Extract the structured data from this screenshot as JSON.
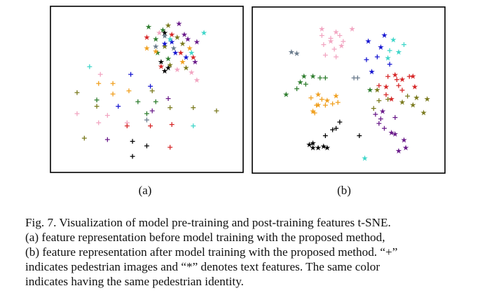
{
  "colors": {
    "red": "#d62728",
    "blue": "#1515d0",
    "pink": "#f2a6c2",
    "cyan": "#3fd6c9",
    "orange": "#f0a020",
    "green": "#2e7d2e",
    "olive": "#7a7a1e",
    "purple": "#6a1b8a",
    "black": "#000000",
    "gray": "#6a7b8c"
  },
  "marker_legend": {
    "plus": "pedestrian images",
    "star": "text features"
  },
  "subfigure_labels": [
    "(a)",
    "(b)"
  ],
  "caption": {
    "lines": [
      "Fig. 7.  Visualization of model pre-training and post-training features t-SNE.",
      "(a) feature representation before model training with the proposed method,",
      "(b) feature representation after model training with the proposed method. “+”",
      "indicates pedestrian images and “*” denotes text features. The same color",
      "indicates having the same pedestrian identity."
    ]
  },
  "chart_data": [
    {
      "type": "scatter",
      "subplot": "(a)",
      "axes": "off",
      "xlim": [
        0,
        100
      ],
      "ylim": [
        0,
        100
      ],
      "series": [
        {
          "marker": "star",
          "color": "green",
          "points": [
            [
              51,
              91
            ],
            [
              59,
              89
            ],
            [
              55,
              83
            ],
            [
              62,
              70
            ],
            [
              56,
              74
            ]
          ]
        },
        {
          "marker": "star",
          "color": "olive",
          "points": [
            [
              62,
              92
            ],
            [
              67,
              84
            ],
            [
              70,
              80
            ],
            [
              63,
              66
            ],
            [
              72,
              64
            ],
            [
              60,
              78
            ]
          ]
        },
        {
          "marker": "star",
          "color": "purple",
          "points": [
            [
              68,
              93
            ],
            [
              71,
              86
            ],
            [
              73,
              83
            ],
            [
              78,
              81
            ],
            [
              77,
              68
            ]
          ]
        },
        {
          "marker": "star",
          "color": "red",
          "points": [
            [
              50,
              84
            ],
            [
              64,
              86
            ],
            [
              69,
              74
            ],
            [
              58,
              65
            ],
            [
              76,
              71
            ]
          ]
        },
        {
          "marker": "star",
          "color": "blue",
          "points": [
            [
              60,
              80
            ],
            [
              66,
              74
            ],
            [
              72,
              71
            ],
            [
              64,
              81
            ]
          ]
        },
        {
          "marker": "star",
          "color": "pink",
          "points": [
            [
              57,
              87
            ],
            [
              67,
              63
            ],
            [
              75,
              61
            ],
            [
              78,
              56
            ]
          ]
        },
        {
          "marker": "star",
          "color": "orange",
          "points": [
            [
              50,
              77
            ],
            [
              55,
              75
            ],
            [
              70,
              68
            ],
            [
              74,
              77
            ]
          ]
        },
        {
          "marker": "star",
          "color": "black",
          "points": [
            [
              60,
              87
            ],
            [
              58,
              68
            ],
            [
              60,
              62
            ],
            [
              62,
              64
            ]
          ]
        },
        {
          "marker": "star",
          "color": "gray",
          "points": [
            [
              55,
              78
            ],
            [
              65,
              77
            ],
            [
              60,
              85
            ]
          ]
        },
        {
          "marker": "star",
          "color": "cyan",
          "points": [
            [
              63,
              83
            ],
            [
              82,
              87
            ],
            [
              75,
              74
            ]
          ]
        },
        {
          "marker": "plus",
          "color": "olive",
          "points": [
            [
              11,
              48
            ],
            [
              22,
              39
            ],
            [
              15,
              18
            ],
            [
              63,
              38
            ],
            [
              89,
              36
            ],
            [
              53,
              49
            ],
            [
              76,
              38
            ]
          ]
        },
        {
          "marker": "plus",
          "color": "orange",
          "points": [
            [
              23,
              54
            ],
            [
              31,
              54
            ],
            [
              31,
              47
            ],
            [
              40,
              49
            ]
          ]
        },
        {
          "marker": "plus",
          "color": "green",
          "points": [
            [
              22,
              43
            ],
            [
              45,
              42
            ],
            [
              50,
              34
            ],
            [
              55,
              42
            ]
          ]
        },
        {
          "marker": "plus",
          "color": "pink",
          "points": [
            [
              11,
              34
            ],
            [
              23,
              28
            ],
            [
              28,
              33
            ],
            [
              39,
              28
            ],
            [
              24,
              60
            ]
          ]
        },
        {
          "marker": "plus",
          "color": "blue",
          "points": [
            [
              41,
              60
            ],
            [
              34,
              39
            ],
            [
              52,
              52
            ]
          ]
        },
        {
          "marker": "plus",
          "color": "purple",
          "points": [
            [
              28,
              17
            ],
            [
              62,
              44
            ],
            [
              53,
              36
            ]
          ]
        },
        {
          "marker": "plus",
          "color": "red",
          "points": [
            [
              39,
              26
            ],
            [
              52,
              26
            ],
            [
              64,
              27
            ],
            [
              63,
              12
            ]
          ]
        },
        {
          "marker": "plus",
          "color": "black",
          "points": [
            [
              42,
              16
            ],
            [
              50,
              13
            ],
            [
              42,
              6
            ]
          ]
        },
        {
          "marker": "plus",
          "color": "cyan",
          "points": [
            [
              18,
              65
            ],
            [
              76,
              26
            ]
          ]
        },
        {
          "marker": "plus",
          "color": "gray",
          "points": [
            [
              50,
              30
            ]
          ]
        }
      ]
    },
    {
      "type": "scatter",
      "subplot": "(b)",
      "axes": "off",
      "xlim": [
        0,
        100
      ],
      "ylim": [
        0,
        100
      ],
      "series": [
        {
          "marker": "plus",
          "color": "pink",
          "points": [
            [
              35,
              86
            ],
            [
              40,
              84
            ],
            [
              36,
              80
            ],
            [
              42,
              77
            ],
            [
              45,
              86
            ],
            [
              37,
              73
            ],
            [
              43,
              72
            ],
            [
              47,
              82
            ]
          ]
        },
        {
          "marker": "star",
          "color": "pink",
          "points": [
            [
              35,
              90
            ],
            [
              43,
              88
            ],
            [
              40,
              82
            ],
            [
              46,
              79
            ],
            [
              52,
              90
            ]
          ]
        },
        {
          "marker": "plus",
          "color": "cyan",
          "points": [
            [
              73,
              76
            ],
            [
              81,
              80
            ]
          ]
        },
        {
          "marker": "star",
          "color": "cyan",
          "points": [
            [
              75,
              83
            ],
            [
              72,
              71
            ],
            [
              78,
              75
            ],
            [
              59,
              5
            ]
          ]
        },
        {
          "marker": "plus",
          "color": "blue",
          "points": [
            [
              60,
              70
            ],
            [
              73,
              67
            ],
            [
              66,
              72
            ]
          ]
        },
        {
          "marker": "star",
          "color": "blue",
          "points": [
            [
              68,
              78
            ],
            [
              61,
              82
            ],
            [
              70,
              86
            ],
            [
              63,
              62
            ]
          ]
        },
        {
          "marker": "plus",
          "color": "gray",
          "points": [
            [
              53,
              58
            ],
            [
              55,
              58
            ]
          ]
        },
        {
          "marker": "star",
          "color": "gray",
          "points": [
            [
              18,
              75
            ],
            [
              21,
              74
            ]
          ]
        },
        {
          "marker": "plus",
          "color": "green",
          "points": [
            [
              34,
              58
            ],
            [
              37,
              58
            ],
            [
              26,
              54
            ],
            [
              21,
              51
            ]
          ]
        },
        {
          "marker": "star",
          "color": "green",
          "points": [
            [
              25,
              59
            ],
            [
              30,
              59
            ],
            [
              23,
              55
            ],
            [
              15,
              47
            ],
            [
              62,
              50
            ]
          ]
        },
        {
          "marker": "plus",
          "color": "red",
          "points": [
            [
              67,
              53
            ],
            [
              72,
              59
            ],
            [
              78,
              53
            ],
            [
              77,
              57
            ],
            [
              80,
              50
            ],
            [
              84,
              59
            ],
            [
              71,
              47
            ]
          ]
        },
        {
          "marker": "star",
          "color": "red",
          "points": [
            [
              80,
              57
            ],
            [
              74,
              44
            ],
            [
              86,
              59
            ],
            [
              87,
              52
            ],
            [
              71,
              52
            ],
            [
              76,
              60
            ]
          ]
        },
        {
          "marker": "plus",
          "color": "olive",
          "points": [
            [
              67,
              43
            ],
            [
              72,
              44
            ],
            [
              64,
              38
            ],
            [
              83,
              46
            ]
          ]
        },
        {
          "marker": "star",
          "color": "olive",
          "points": [
            [
              66,
              50
            ],
            [
              80,
              42
            ],
            [
              88,
              45
            ],
            [
              92,
              35
            ],
            [
              86,
              40
            ],
            [
              94,
              44
            ]
          ]
        },
        {
          "marker": "plus",
          "color": "orange",
          "points": [
            [
              31,
              35
            ],
            [
              37,
              40
            ],
            [
              41,
              41
            ],
            [
              44,
              42
            ],
            [
              35,
              44
            ],
            [
              29,
              45
            ],
            [
              32,
              40
            ]
          ]
        },
        {
          "marker": "star",
          "color": "orange",
          "points": [
            [
              33,
              47
            ],
            [
              38,
              43
            ],
            [
              33,
              40
            ],
            [
              30,
              36
            ],
            [
              43,
              46
            ]
          ]
        },
        {
          "marker": "plus",
          "color": "purple",
          "points": [
            [
              67,
              28
            ],
            [
              68,
              31
            ],
            [
              76,
              32
            ],
            [
              70,
              25
            ],
            [
              65,
              34
            ]
          ]
        },
        {
          "marker": "star",
          "color": "purple",
          "points": [
            [
              76,
              21
            ],
            [
              81,
              17
            ],
            [
              78,
              10
            ],
            [
              82,
              12
            ],
            [
              74,
              22
            ],
            [
              69,
              36
            ]
          ]
        },
        {
          "marker": "plus",
          "color": "black",
          "points": [
            [
              43,
              25
            ],
            [
              37,
              20
            ],
            [
              45,
              29
            ],
            [
              41,
              24
            ]
          ]
        },
        {
          "marker": "star",
          "color": "black",
          "points": [
            [
              30,
              15
            ],
            [
              33,
              12
            ],
            [
              36,
              13
            ],
            [
              38,
              12
            ],
            [
              30,
              12
            ],
            [
              28,
              14
            ]
          ]
        },
        {
          "marker": "plus",
          "color": "black",
          "points": [
            [
              56,
              20
            ]
          ]
        }
      ]
    }
  ]
}
